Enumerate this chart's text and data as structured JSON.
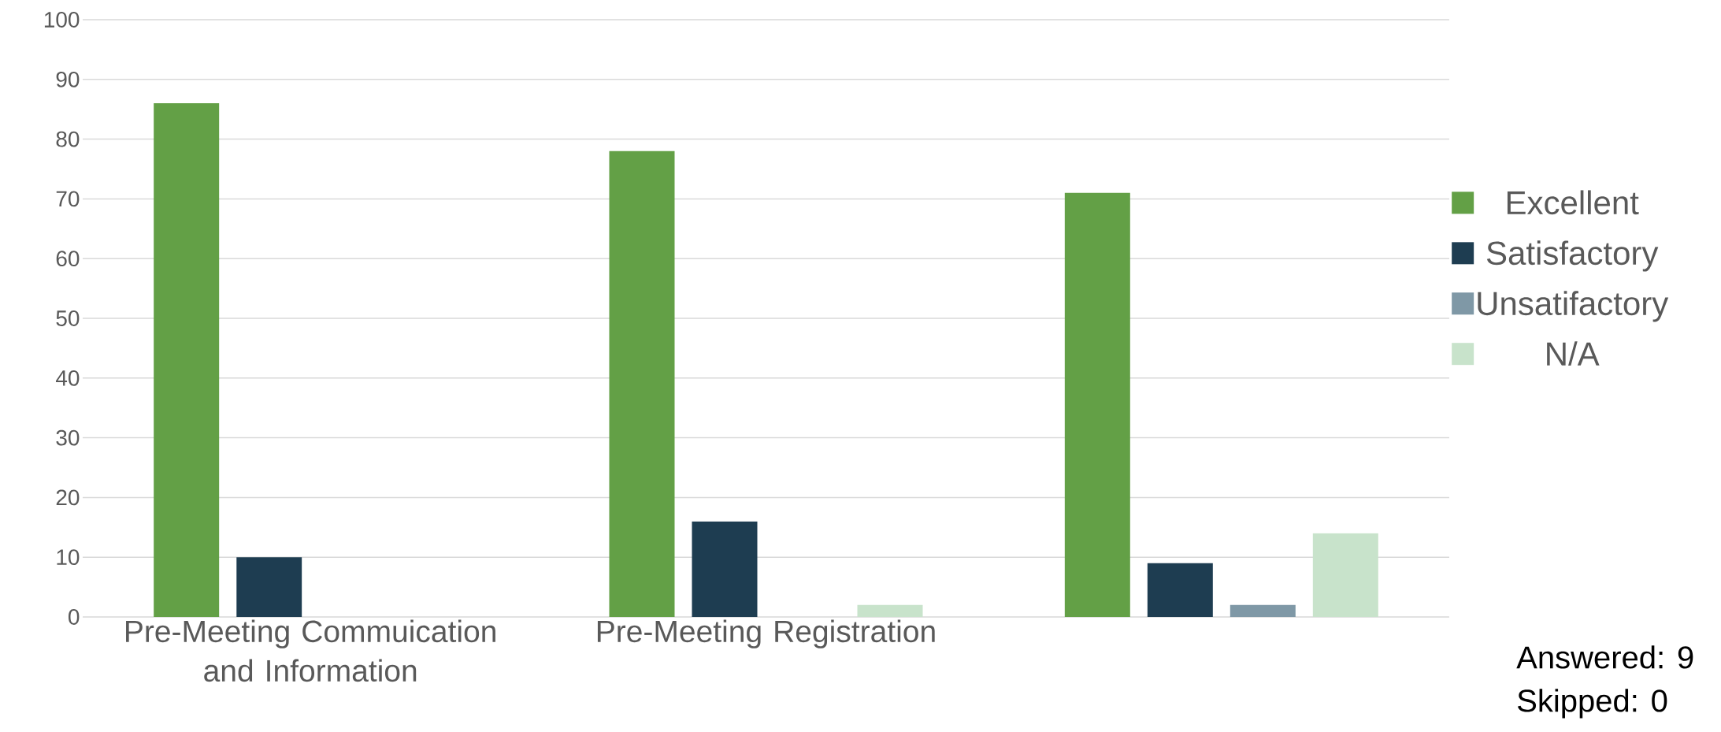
{
  "chart_data": {
    "type": "bar",
    "categories": [
      "Pre-Meeting Commuication and Information",
      "Pre-Meeting Registration",
      null
    ],
    "series": [
      {
        "name": "Excellent",
        "color": "#63a046",
        "values": [
          86,
          78,
          71
        ]
      },
      {
        "name": "Satisfactory",
        "color": "#1e3d51",
        "values": [
          10,
          16,
          9
        ]
      },
      {
        "name": "Unsatifactory",
        "color": "#7f98a6",
        "values": [
          0,
          0,
          2
        ]
      },
      {
        "name": "N/A",
        "color": "#c8e3cb",
        "values": [
          0,
          2,
          14
        ]
      }
    ],
    "ylim": [
      0,
      100
    ],
    "yticks": [
      0,
      10,
      20,
      30,
      40,
      50,
      60,
      70,
      80,
      90,
      100
    ],
    "grid": "y",
    "legend": "right",
    "annotations": [
      "Answered: 9",
      "Skipped: 0"
    ]
  }
}
